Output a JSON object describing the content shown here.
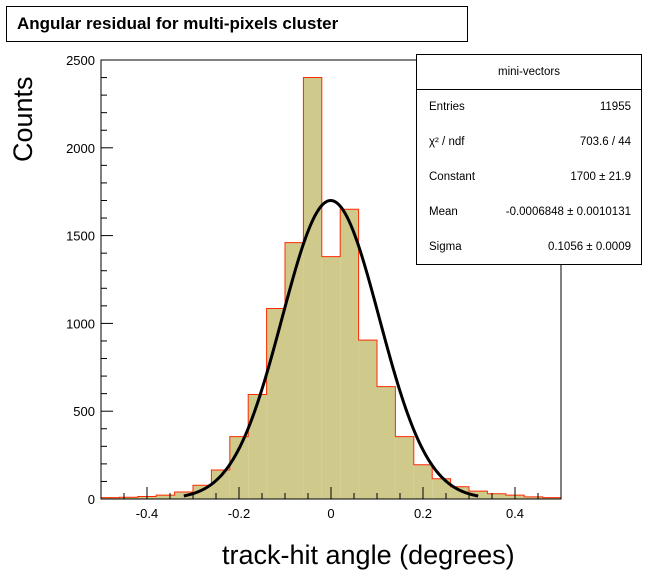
{
  "chart_data": {
    "type": "bar",
    "title": "Angular residual for multi-pixels cluster",
    "xlabel": "track-hit angle (degrees)",
    "ylabel": "Counts",
    "xlim": [
      -0.5,
      0.5
    ],
    "ylim": [
      0,
      2500
    ],
    "bin_edges": [
      -0.5,
      -0.46,
      -0.42,
      -0.38,
      -0.34,
      -0.3,
      -0.26,
      -0.22,
      -0.18,
      -0.14,
      -0.1,
      -0.06,
      -0.02,
      0.02,
      0.06,
      0.1,
      0.14,
      0.18,
      0.22,
      0.26,
      0.3,
      0.34,
      0.38,
      0.42,
      0.46,
      0.5
    ],
    "values": [
      8,
      10,
      14,
      22,
      40,
      78,
      165,
      355,
      595,
      1085,
      1460,
      2400,
      1380,
      1650,
      905,
      640,
      355,
      195,
      115,
      70,
      45,
      30,
      22,
      12,
      8
    ],
    "fit": {
      "function": "gaus",
      "constant": 1700,
      "mean": -0.0006848,
      "sigma": 0.1056
    },
    "x_ticks": [
      -0.4,
      -0.2,
      0,
      0.2,
      0.4
    ],
    "x_tick_labels": [
      "-0.4",
      "-0.2",
      "0",
      "0.2",
      "0.4"
    ],
    "y_ticks": [
      0,
      500,
      1000,
      1500,
      2000,
      2500
    ],
    "y_tick_labels": [
      "0",
      "500",
      "1000",
      "1500",
      "2000",
      "2500"
    ],
    "fill_color": "#cfca8b",
    "line_color": "#ff2a00",
    "fit_color": "#000000",
    "grid": false,
    "legend": "top-right"
  },
  "stats_box": {
    "name": "mini-vectors",
    "rows": [
      {
        "label": "Entries",
        "value": "11955"
      },
      {
        "label": "χ² / ndf",
        "value": "703.6 / 44"
      },
      {
        "label": "Constant",
        "value": "1700 ± 21.9"
      },
      {
        "label": "Mean",
        "value": "-0.0006848 ± 0.0010131"
      },
      {
        "label": "Sigma",
        "value": "0.1056 ± 0.0009"
      }
    ]
  }
}
